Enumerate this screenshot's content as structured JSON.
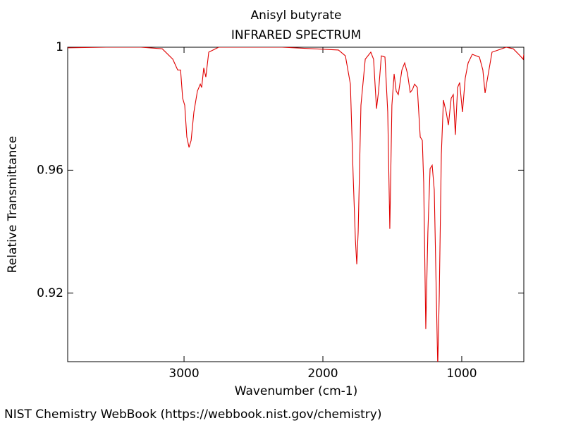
{
  "chart_data": {
    "type": "line",
    "title": "Anisyl butyrate",
    "subtitle": "INFRARED SPECTRUM",
    "x_label": "Wavenumber (cm-1)",
    "y_label": "Relative Transmittance",
    "footer": "NIST Chemistry WebBook (https://webbook.nist.gov/chemistry)",
    "xlim": [
      3838,
      553
    ],
    "ylim": [
      0.8977,
      1.0
    ],
    "xticks": [
      3000,
      2000,
      1000
    ],
    "yticks": [
      {
        "value": 1,
        "label": "1"
      },
      0.96,
      0.92
    ],
    "series": [
      {
        "name": "Anisyl butyrate",
        "color": "#e00000",
        "x": [
          3838,
          3563,
          3310,
          3157,
          3081,
          3046,
          3025,
          3010,
          2995,
          2980,
          2964,
          2949,
          2929,
          2904,
          2883,
          2873,
          2858,
          2843,
          2822,
          2751,
          2294,
          1888,
          1838,
          1802,
          1782,
          1766,
          1756,
          1746,
          1726,
          1695,
          1655,
          1635,
          1614,
          1599,
          1579,
          1553,
          1533,
          1518,
          1503,
          1487,
          1472,
          1457,
          1431,
          1411,
          1391,
          1371,
          1355,
          1340,
          1320,
          1299,
          1284,
          1274,
          1259,
          1244,
          1228,
          1213,
          1198,
          1183,
          1173,
          1162,
          1147,
          1132,
          1112,
          1096,
          1076,
          1061,
          1046,
          1030,
          1015,
          995,
          975,
          954,
          924,
          873,
          848,
          832,
          817,
          782,
          680,
          629,
          579,
          558,
          553
        ],
        "values": [
          0.9998,
          1.0,
          1.0,
          0.9995,
          0.9961,
          0.9926,
          0.9926,
          0.9834,
          0.9811,
          0.9708,
          0.9674,
          0.9697,
          0.9789,
          0.9857,
          0.988,
          0.9869,
          0.9933,
          0.9903,
          0.9984,
          1.0,
          1.0,
          0.9991,
          0.9972,
          0.988,
          0.9582,
          0.9375,
          0.9294,
          0.9398,
          0.9811,
          0.9961,
          0.9984,
          0.9961,
          0.98,
          0.9857,
          0.9972,
          0.9968,
          0.9789,
          0.9409,
          0.9811,
          0.9913,
          0.9857,
          0.9846,
          0.9926,
          0.9949,
          0.9915,
          0.9853,
          0.9862,
          0.988,
          0.9869,
          0.9708,
          0.9697,
          0.9559,
          0.9083,
          0.9398,
          0.9605,
          0.9616,
          0.9536,
          0.9191,
          0.896,
          0.9191,
          0.9651,
          0.9828,
          0.9789,
          0.9747,
          0.9834,
          0.9846,
          0.9715,
          0.9869,
          0.9885,
          0.9789,
          0.9899,
          0.9949,
          0.9977,
          0.9968,
          0.9926,
          0.9851,
          0.9892,
          0.9984,
          1.0,
          0.9995,
          0.9972,
          0.9961,
          0.9977
        ]
      }
    ]
  }
}
